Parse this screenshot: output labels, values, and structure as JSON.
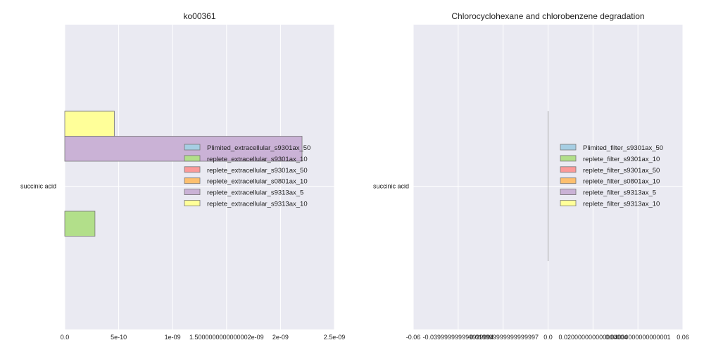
{
  "colors": {
    "panel_bg": "#EAEAF2",
    "grid": "#FFFFFF",
    "bar_edge": "#777777"
  },
  "chart_data": [
    {
      "type": "bar",
      "orientation": "horizontal",
      "title": "ko00361",
      "categories": [
        "succinic acid"
      ],
      "xlim": [
        0,
        2.5e-09
      ],
      "x_ticks": [
        0,
        5e-10,
        1e-09,
        1.5e-09,
        2e-09,
        2.5e-09
      ],
      "x_tick_labels": [
        "0.0",
        "5e-10",
        "1e-09",
        "1.5000000000000002e-09",
        "2e-09",
        "2.5e-09"
      ],
      "grid": true,
      "legend_position": "right-center",
      "series": [
        {
          "name": "Plimited_extracellular_s9301ax_50",
          "color": "#A6CEE3",
          "values": [
            0
          ]
        },
        {
          "name": "replete_extracellular_s9301ax_10",
          "color": "#B2DF8A",
          "values": [
            2.8e-10
          ]
        },
        {
          "name": "replete_extracellular_s9301ax_50",
          "color": "#FB9A99",
          "values": [
            0
          ]
        },
        {
          "name": "replete_extracellular_s0801ax_10",
          "color": "#FDBF6F",
          "values": [
            0
          ]
        },
        {
          "name": "replete_extracellular_s9313ax_5",
          "color": "#CAB2D6",
          "values": [
            2.2e-09
          ]
        },
        {
          "name": "replete_extracellular_s9313ax_10",
          "color": "#FFFF99",
          "values": [
            4.6e-10
          ]
        }
      ]
    },
    {
      "type": "bar",
      "orientation": "horizontal",
      "title": "Chlorocyclohexane and chlorobenzene degradation",
      "categories": [
        "succinic acid"
      ],
      "xlim": [
        -0.06,
        0.06
      ],
      "x_ticks": [
        -0.06,
        -0.04,
        -0.02,
        0.0,
        0.02,
        0.04,
        0.06
      ],
      "x_tick_labels": [
        "-0.06",
        "-0.039999999999999994",
        "-0.019999999999999997",
        "0.0",
        "0.020000000000000004",
        "0.04000000000000001",
        "0.06"
      ],
      "grid": true,
      "legend_position": "right-center",
      "series": [
        {
          "name": "Plimited_filter_s9301ax_50",
          "color": "#A6CEE3",
          "values": [
            0
          ]
        },
        {
          "name": "replete_filter_s9301ax_10",
          "color": "#B2DF8A",
          "values": [
            0
          ]
        },
        {
          "name": "replete_filter_s9301ax_50",
          "color": "#FB9A99",
          "values": [
            0
          ]
        },
        {
          "name": "replete_filter_s0801ax_10",
          "color": "#FDBF6F",
          "values": [
            0
          ]
        },
        {
          "name": "replete_filter_s9313ax_5",
          "color": "#CAB2D6",
          "values": [
            0
          ]
        },
        {
          "name": "replete_filter_s9313ax_10",
          "color": "#FFFF99",
          "values": [
            0
          ]
        }
      ]
    }
  ]
}
